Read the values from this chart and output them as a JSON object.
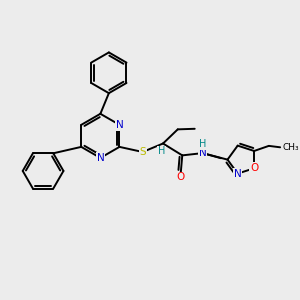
{
  "background_color": "#ececec",
  "bond_color": "#000000",
  "atom_colors": {
    "N": "#0000cc",
    "O": "#ff0000",
    "S": "#bbbb00",
    "H": "#008888",
    "C": "#000000"
  },
  "figsize": [
    3.0,
    3.0
  ],
  "dpi": 100,
  "lw": 1.4,
  "fs": 7.5
}
